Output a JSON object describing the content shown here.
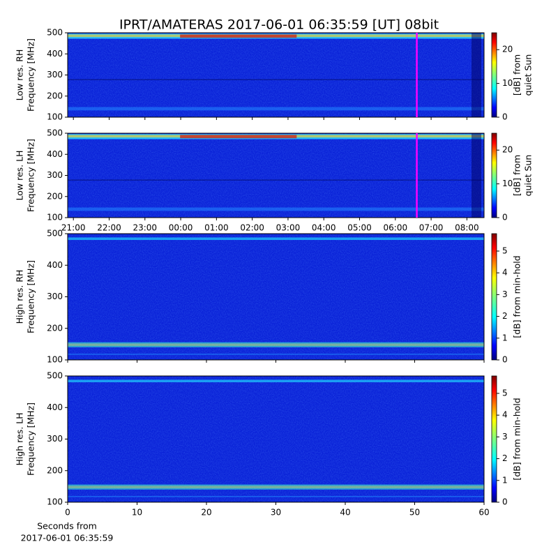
{
  "title": "IPRT/AMATERAS 2017-06-01 06:35:59 [UT]   08bit",
  "chart_data": [
    {
      "type": "heatmap",
      "ylabel": [
        "Low res. RH",
        "Frequency [MHz]"
      ],
      "ylim": [
        100,
        500
      ],
      "yticks": [
        100,
        200,
        300,
        400,
        500
      ],
      "xlim": [
        20.84,
        32.48
      ],
      "marker_x": 30.6,
      "marker_color": "#ff00ff",
      "colorbar": {
        "label": [
          "[dB] from",
          "quiet Sun"
        ],
        "lim": [
          0,
          25
        ],
        "ticks": [
          0,
          10,
          20
        ]
      }
    },
    {
      "type": "heatmap",
      "ylabel": [
        "Low res. LH",
        "Frequency [MHz]"
      ],
      "ylim": [
        100,
        500
      ],
      "yticks": [
        100,
        200,
        300,
        400,
        500
      ],
      "xlim": [
        20.84,
        32.48
      ],
      "marker_x": 30.6,
      "marker_color": "#ff00ff",
      "xticks": [
        {
          "value": 21,
          "label": "21:00"
        },
        {
          "value": 22,
          "label": "22:00"
        },
        {
          "value": 23,
          "label": "23:00"
        },
        {
          "value": 24,
          "label": "00:00"
        },
        {
          "value": 25,
          "label": "01:00"
        },
        {
          "value": 26,
          "label": "02:00"
        },
        {
          "value": 27,
          "label": "03:00"
        },
        {
          "value": 28,
          "label": "04:00"
        },
        {
          "value": 29,
          "label": "05:00"
        },
        {
          "value": 30,
          "label": "06:00"
        },
        {
          "value": 31,
          "label": "07:00"
        },
        {
          "value": 32,
          "label": "08:00"
        }
      ],
      "colorbar": {
        "label": [
          "[dB] from",
          "quiet Sun"
        ],
        "lim": [
          0,
          25
        ],
        "ticks": [
          0,
          10,
          20
        ]
      }
    },
    {
      "type": "heatmap",
      "ylabel": [
        "High res. RH",
        "Frequency [MHz]"
      ],
      "ylim": [
        100,
        500
      ],
      "yticks": [
        100,
        200,
        300,
        400,
        500
      ],
      "xlim": [
        0,
        60
      ],
      "colorbar": {
        "label": [
          "[dB] from min-hold"
        ],
        "lim": [
          0,
          5.8
        ],
        "ticks": [
          0,
          1,
          2,
          3,
          4,
          5
        ]
      }
    },
    {
      "type": "heatmap",
      "ylabel": [
        "High res. LH",
        "Frequency [MHz]"
      ],
      "ylim": [
        100,
        500
      ],
      "yticks": [
        100,
        200,
        300,
        400,
        500
      ],
      "xlim": [
        0,
        60
      ],
      "xticks": [
        0,
        10,
        20,
        30,
        40,
        50,
        60
      ],
      "xlabel": [
        "Seconds from",
        "2017-06-01 06:35:59"
      ],
      "colorbar": {
        "label": [
          "[dB] from min-hold"
        ],
        "lim": [
          0,
          5.8
        ],
        "ticks": [
          0,
          1,
          2,
          3,
          4,
          5
        ]
      }
    }
  ]
}
